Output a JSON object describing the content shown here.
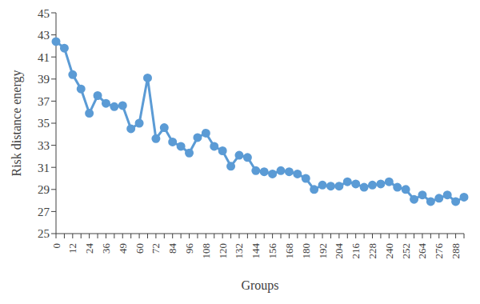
{
  "chart_data": {
    "type": "line",
    "x_label": "Groups",
    "y_label": "Risk distance energy",
    "categories": [
      "0",
      null,
      "12",
      null,
      "24",
      null,
      "36",
      null,
      "49",
      null,
      "60",
      null,
      "72",
      null,
      "84",
      null,
      "96",
      null,
      "108",
      null,
      "120",
      null,
      "132",
      null,
      "144",
      null,
      "156",
      null,
      "168",
      null,
      "180",
      null,
      "192",
      null,
      "204",
      null,
      "216",
      null,
      "228",
      null,
      "240",
      null,
      "252",
      null,
      "264",
      null,
      "276",
      null,
      "288",
      null
    ],
    "series": [
      {
        "name": "Risk distance energy",
        "color": "#5b9bd5",
        "marker": "circle",
        "values": [
          42.4,
          41.8,
          39.4,
          38.1,
          35.9,
          37.5,
          36.8,
          36.5,
          36.6,
          34.5,
          35.0,
          39.1,
          33.6,
          34.6,
          33.3,
          32.9,
          32.3,
          33.7,
          34.1,
          32.9,
          32.5,
          31.1,
          32.1,
          31.9,
          30.7,
          30.6,
          30.4,
          30.7,
          30.6,
          30.4,
          30.0,
          29.0,
          29.4,
          29.3,
          29.3,
          29.7,
          29.5,
          29.2,
          29.4,
          29.5,
          29.7,
          29.2,
          29.0,
          28.1,
          28.5,
          27.9,
          28.2,
          28.5,
          27.9,
          28.3
        ]
      }
    ],
    "ylim": [
      25,
      45
    ],
    "yticks": [
      25,
      27,
      29,
      31,
      33,
      35,
      37,
      39,
      41,
      43,
      45
    ],
    "grid": false
  }
}
